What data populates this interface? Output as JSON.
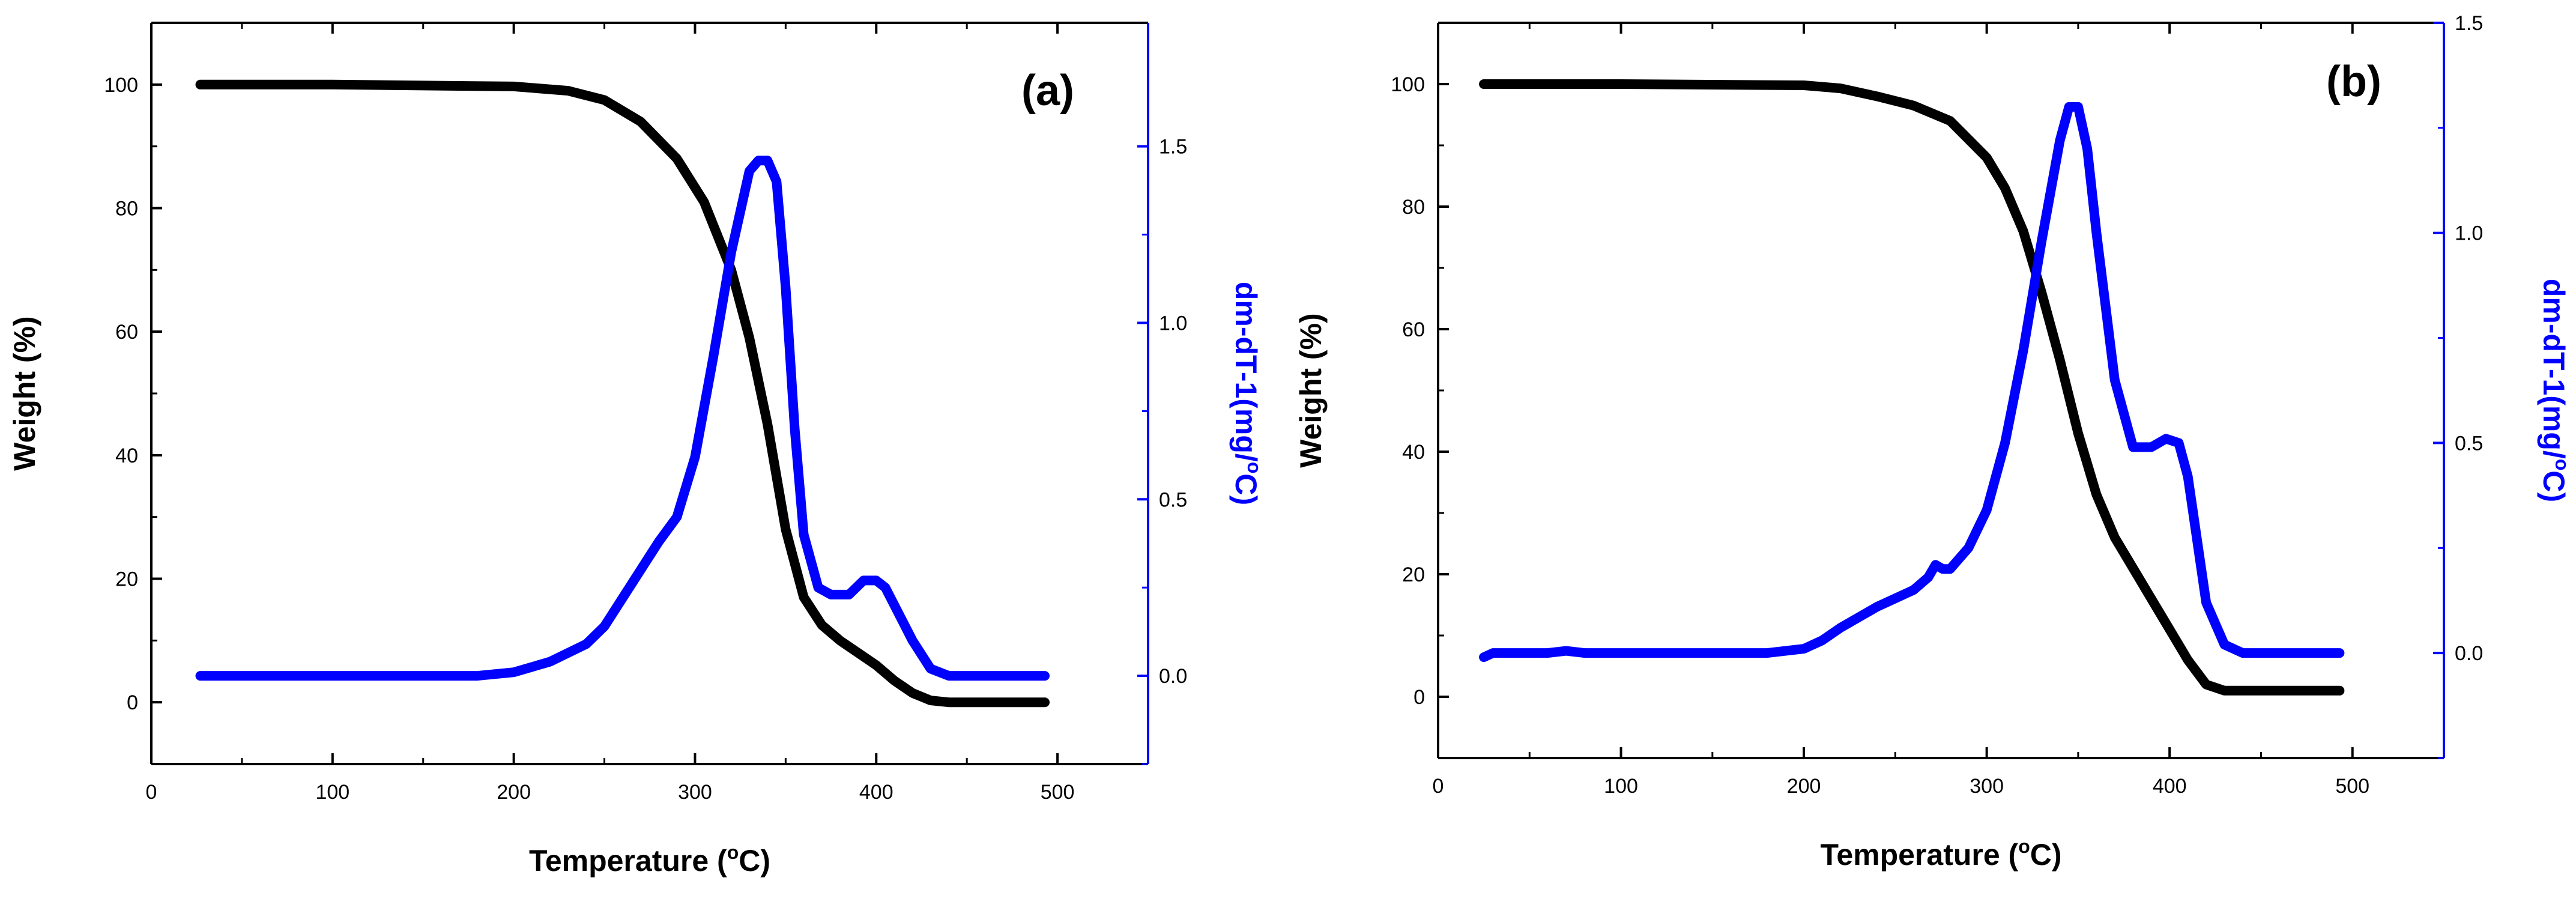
{
  "colors": {
    "weight": "#000000",
    "derivative": "#0000FF",
    "background": "#FFFFFF"
  },
  "chart_data": [
    {
      "type": "line",
      "panel": "(a)",
      "xlabel": "Temperature (",
      "xlabel_sup": "o",
      "xlabel_tail": "C)",
      "ylabel": "Weight (%)",
      "y2label": "dm-dT-1(mg/",
      "y2label_sup": "o",
      "y2label_tail": "C)",
      "xlim": [
        0,
        550
      ],
      "ylim": [
        -10,
        110
      ],
      "y2lim": [
        -0.25,
        1.85
      ],
      "xticks": [
        0,
        100,
        200,
        300,
        400,
        500
      ],
      "yticks": [
        0,
        20,
        40,
        60,
        80,
        100
      ],
      "y2ticks": [
        0.0,
        0.5,
        1.0,
        1.5
      ],
      "xtick_labels": [
        "0",
        "100",
        "200",
        "300",
        "400",
        "500"
      ],
      "ytick_labels": [
        "0",
        "20",
        "40",
        "60",
        "80",
        "100"
      ],
      "y2tick_labels": [
        "0.0",
        "0.5",
        "1.0",
        "1.5"
      ],
      "series": [
        {
          "name": "Weight",
          "axis": "left",
          "x": [
            27,
            100,
            200,
            230,
            250,
            270,
            290,
            305,
            320,
            330,
            340,
            350,
            360,
            370,
            380,
            390,
            400,
            410,
            420,
            430,
            440,
            460,
            493
          ],
          "y": [
            100,
            100,
            99.7,
            99,
            97.5,
            94,
            88,
            81,
            70,
            59,
            45,
            28,
            17,
            12.5,
            10,
            8,
            6,
            3.5,
            1.5,
            0.3,
            0,
            0,
            0
          ]
        },
        {
          "name": "dm-dT-1",
          "axis": "right",
          "x": [
            27,
            100,
            180,
            200,
            220,
            240,
            250,
            260,
            270,
            280,
            290,
            300,
            310,
            320,
            330,
            335,
            340,
            345,
            350,
            355,
            360,
            368,
            375,
            385,
            393,
            400,
            405,
            410,
            420,
            430,
            440,
            460,
            493
          ],
          "y": [
            0,
            0,
            0,
            0.01,
            0.04,
            0.09,
            0.14,
            0.22,
            0.3,
            0.38,
            0.45,
            0.62,
            0.9,
            1.2,
            1.43,
            1.46,
            1.46,
            1.4,
            1.1,
            0.7,
            0.4,
            0.25,
            0.23,
            0.23,
            0.27,
            0.27,
            0.25,
            0.2,
            0.1,
            0.02,
            0,
            0,
            0
          ]
        }
      ]
    },
    {
      "type": "line",
      "panel": "(b)",
      "xlabel": "Temperature (",
      "xlabel_sup": "o",
      "xlabel_tail": "C)",
      "ylabel": "Weight (%)",
      "y2label": "dm-dT-1(mg/",
      "y2label_sup": "o",
      "y2label_tail": "C)",
      "xlim": [
        0,
        550
      ],
      "ylim": [
        -10,
        110
      ],
      "y2lim": [
        -0.25,
        1.5
      ],
      "xticks": [
        0,
        100,
        200,
        300,
        400,
        500
      ],
      "yticks": [
        0,
        20,
        40,
        60,
        80,
        100
      ],
      "y2ticks": [
        0.0,
        0.5,
        1.0,
        1.5
      ],
      "xtick_labels": [
        "0",
        "100",
        "200",
        "300",
        "400",
        "500"
      ],
      "ytick_labels": [
        "0",
        "20",
        "40",
        "60",
        "80",
        "100"
      ],
      "y2tick_labels": [
        "0.0",
        "0.5",
        "1.0",
        "1.5"
      ],
      "series": [
        {
          "name": "Weight",
          "axis": "left",
          "x": [
            25,
            100,
            200,
            220,
            240,
            260,
            280,
            300,
            310,
            320,
            330,
            340,
            350,
            360,
            370,
            380,
            390,
            400,
            410,
            420,
            430,
            450,
            493
          ],
          "y": [
            100,
            100,
            99.8,
            99.3,
            98,
            96.5,
            94,
            88,
            83,
            76,
            66,
            55,
            43,
            33,
            26,
            21,
            16,
            11,
            6,
            2,
            1,
            1,
            1
          ]
        },
        {
          "name": "dm-dT-1",
          "axis": "right",
          "x": [
            25,
            30,
            60,
            70,
            80,
            100,
            180,
            200,
            210,
            220,
            240,
            260,
            268,
            272,
            276,
            280,
            290,
            300,
            310,
            320,
            330,
            340,
            345,
            350,
            355,
            360,
            370,
            380,
            390,
            398,
            405,
            410,
            420,
            430,
            440,
            460,
            493
          ],
          "y": [
            -0.01,
            0,
            0,
            0.005,
            0,
            0,
            0,
            0.01,
            0.03,
            0.06,
            0.11,
            0.15,
            0.18,
            0.21,
            0.2,
            0.2,
            0.25,
            0.34,
            0.5,
            0.72,
            0.98,
            1.22,
            1.3,
            1.3,
            1.2,
            1.0,
            0.65,
            0.49,
            0.49,
            0.51,
            0.5,
            0.42,
            0.12,
            0.02,
            0,
            0,
            0
          ]
        }
      ]
    }
  ]
}
